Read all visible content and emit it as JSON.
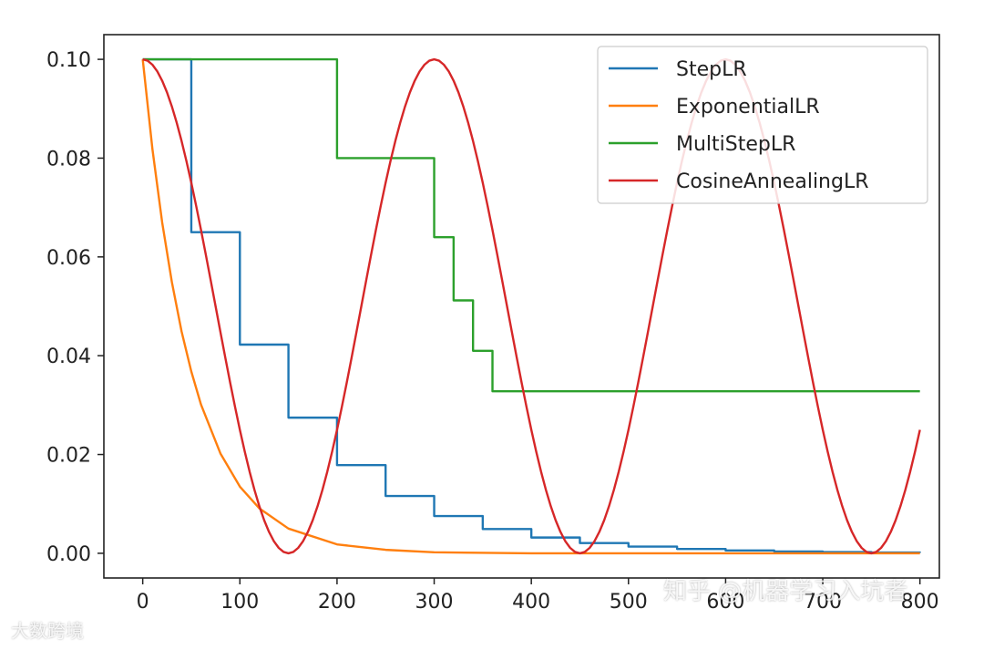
{
  "chart_data": {
    "type": "line",
    "xlim": [
      -40,
      820
    ],
    "ylim": [
      -0.005,
      0.105
    ],
    "x_ticks": [
      0,
      100,
      200,
      300,
      400,
      500,
      600,
      700,
      800
    ],
    "y_ticks": [
      0.0,
      0.02,
      0.04,
      0.06,
      0.08,
      0.1
    ],
    "y_tick_labels": [
      "0.00",
      "0.02",
      "0.04",
      "0.06",
      "0.08",
      "0.10"
    ],
    "legend_position": "top-right",
    "grid": false,
    "series": [
      {
        "name": "StepLR",
        "color": "#1f77b4",
        "kind": "step",
        "x": [
          0,
          50,
          100,
          150,
          200,
          250,
          300,
          350,
          400,
          450,
          500,
          550,
          600,
          650,
          700,
          750,
          800
        ],
        "y": [
          0.1,
          0.065,
          0.04225,
          0.02746,
          0.01785,
          0.0116,
          0.00754,
          0.0049,
          0.00319,
          0.00207,
          0.00135,
          0.00088,
          0.00057,
          0.00037,
          0.00024,
          0.00016,
          0.0001
        ]
      },
      {
        "name": "ExponentialLR",
        "color": "#ff7f0e",
        "kind": "line",
        "x": [
          0,
          10,
          20,
          30,
          40,
          50,
          60,
          80,
          100,
          120,
          150,
          200,
          250,
          300,
          400,
          500,
          600,
          700,
          800
        ],
        "y": [
          0.1,
          0.0818,
          0.067,
          0.0549,
          0.0449,
          0.0368,
          0.0301,
          0.0202,
          0.0135,
          0.0091,
          0.005,
          0.0018,
          0.0007,
          0.0002,
          0.0,
          0.0,
          0.0,
          0.0,
          0.0
        ]
      },
      {
        "name": "MultiStepLR",
        "color": "#2ca02c",
        "kind": "step",
        "x": [
          0,
          200,
          300,
          320,
          340,
          360,
          800
        ],
        "y": [
          0.1,
          0.08,
          0.064,
          0.0512,
          0.041,
          0.0328,
          0.0328
        ]
      },
      {
        "name": "CosineAnnealingLR",
        "color": "#d62728",
        "kind": "line",
        "x": [
          0,
          25,
          50,
          75,
          100,
          125,
          150,
          175,
          200,
          225,
          250,
          275,
          300,
          325,
          350,
          375,
          400,
          425,
          450,
          475,
          500,
          525,
          550,
          575,
          600,
          625,
          650,
          675,
          700,
          725,
          750,
          775,
          800
        ],
        "y": [
          0.1,
          0.0933,
          0.075,
          0.05,
          0.025,
          0.0067,
          0.0,
          0.0067,
          0.025,
          0.05,
          0.075,
          0.0933,
          0.1,
          0.0933,
          0.075,
          0.05,
          0.025,
          0.0067,
          0.0,
          0.0067,
          0.025,
          0.05,
          0.075,
          0.0933,
          0.1,
          0.0933,
          0.075,
          0.05,
          0.025,
          0.0067,
          0.0,
          0.0067,
          0.025
        ]
      }
    ]
  },
  "watermarks": {
    "zhihu": "知乎 @机器学习入坑者",
    "dashu": "大数跨境"
  }
}
